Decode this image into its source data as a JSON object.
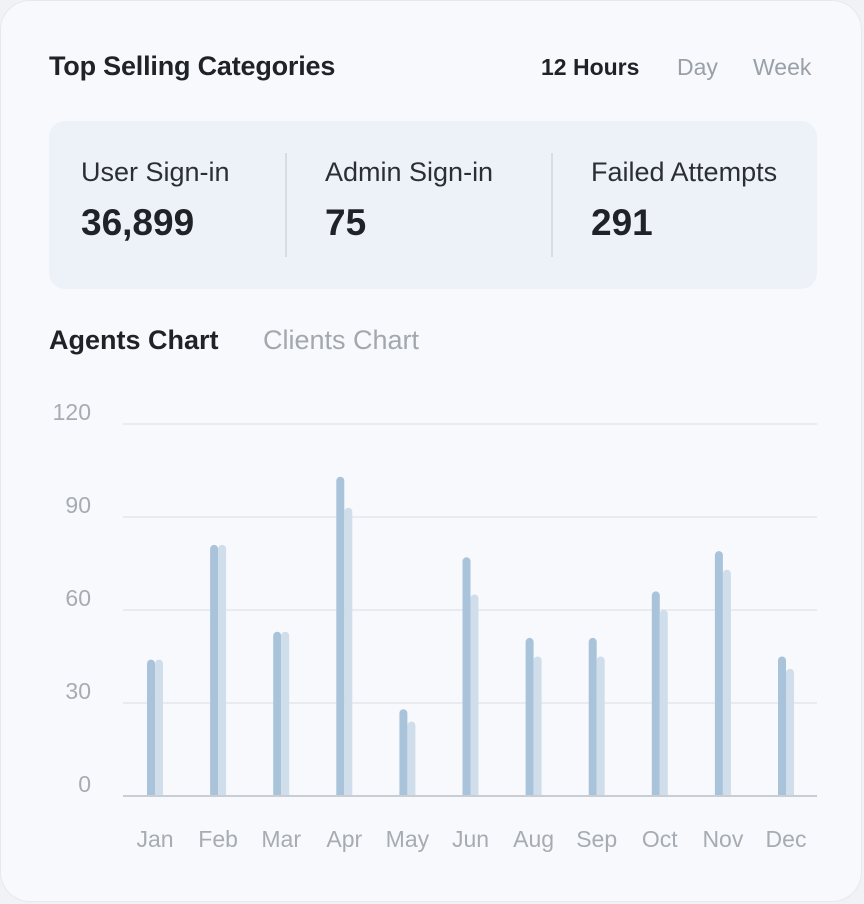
{
  "header": {
    "title": "Top Selling Categories",
    "ranges": [
      {
        "label": "12 Hours",
        "active": true
      },
      {
        "label": "Day",
        "active": false
      },
      {
        "label": "Week",
        "active": false
      }
    ]
  },
  "stats": [
    {
      "label": "User Sign-in",
      "value": "36,899"
    },
    {
      "label": "Admin Sign-in",
      "value": "75"
    },
    {
      "label": "Failed Attempts",
      "value": "291"
    }
  ],
  "chart_tabs": [
    {
      "label": "Agents Chart",
      "active": true
    },
    {
      "label": "Clients Chart",
      "active": false
    }
  ],
  "colors": {
    "series_primary": "#a9c4da",
    "series_secondary": "#cfdeea",
    "grid": "#e4e8ed",
    "axis": "#c9ced5"
  },
  "chart_data": {
    "type": "bar",
    "categories": [
      "Jan",
      "Feb",
      "Mar",
      "Apr",
      "May",
      "Jun",
      "Aug",
      "Sep",
      "Oct",
      "Nov",
      "Dec"
    ],
    "series": [
      {
        "values": [
          44,
          81,
          53,
          103,
          28,
          77,
          51,
          51,
          66,
          79,
          45
        ]
      },
      {
        "values": [
          44,
          81,
          53,
          93,
          24,
          65,
          45,
          45,
          60,
          73,
          41
        ]
      }
    ],
    "yticks": [
      "0",
      "30",
      "60",
      "90",
      "120"
    ],
    "ylim": [
      0,
      120
    ],
    "grid": true
  }
}
